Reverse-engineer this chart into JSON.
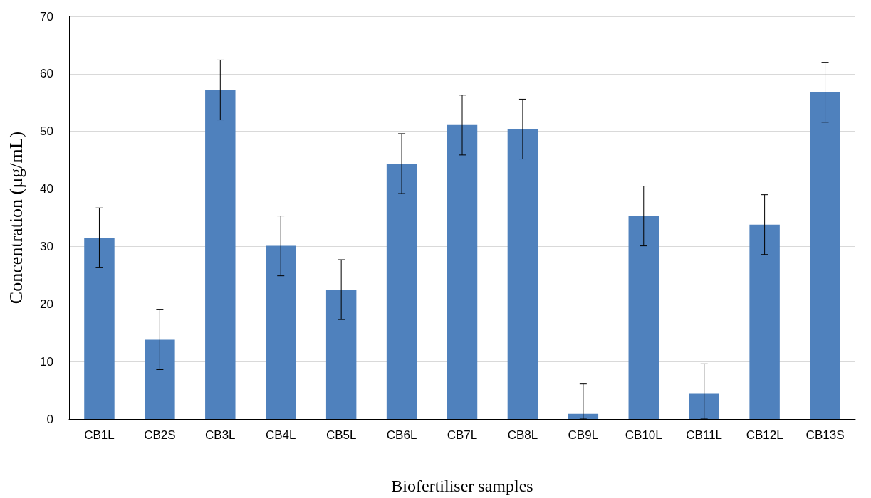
{
  "chart_data": {
    "type": "bar",
    "xlabel": "Biofertiliser samples",
    "ylabel": "Concentration (µg/mL)",
    "categories": [
      "CB1L",
      "CB2S",
      "CB3L",
      "CB4L",
      "CB5L",
      "CB6L",
      "CB7L",
      "CB8L",
      "CB9L",
      "CB10L",
      "CB11L",
      "CB12L",
      "CB13S"
    ],
    "values": [
      31.5,
      13.8,
      57.2,
      30.1,
      22.5,
      44.4,
      51.1,
      50.4,
      0.9,
      35.3,
      4.4,
      33.8,
      56.8
    ],
    "errors": [
      5.2,
      5.2,
      5.2,
      5.2,
      5.2,
      5.2,
      5.2,
      5.2,
      [
        0,
        6.1
      ],
      5.2,
      [
        0,
        9.6
      ],
      5.2,
      5.2
    ],
    "color": "#4f81bd",
    "ylim": [
      0,
      70
    ],
    "yticks": [
      0,
      10,
      20,
      30,
      40,
      50,
      60,
      70
    ],
    "grid": "y"
  }
}
